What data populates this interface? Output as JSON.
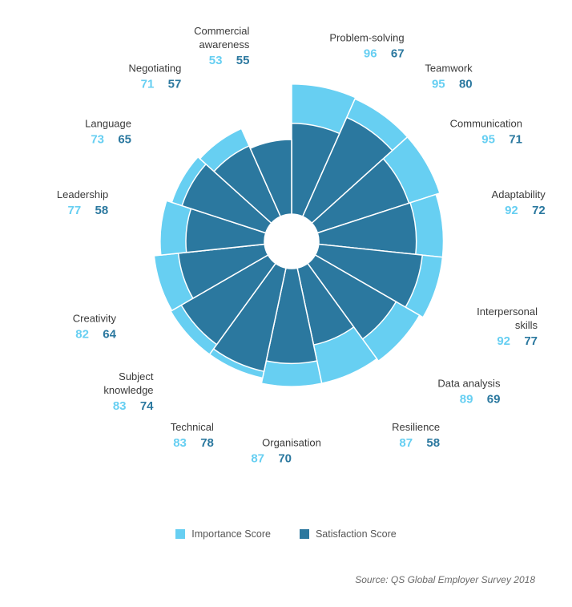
{
  "chart_data": {
    "type": "polar-area",
    "radial_max": 100,
    "categories": [
      "Problem-solving",
      "Teamwork",
      "Communication",
      "Adaptability",
      "Interpersonal skills",
      "Data analysis",
      "Resilience",
      "Organisation",
      "Technical",
      "Subject knowledge",
      "Creativity",
      "Leadership",
      "Language",
      "Negotiating",
      "Commercial awareness"
    ],
    "label_lines": [
      [
        "Problem-solving"
      ],
      [
        "Teamwork"
      ],
      [
        "Communication"
      ],
      [
        "Adaptability"
      ],
      [
        "Interpersonal",
        "skills"
      ],
      [
        "Data analysis"
      ],
      [
        "Resilience"
      ],
      [
        "Organisation"
      ],
      [
        "Technical"
      ],
      [
        "Subject",
        "knowledge"
      ],
      [
        "Creativity"
      ],
      [
        "Leadership"
      ],
      [
        "Language"
      ],
      [
        "Negotiating"
      ],
      [
        "Commercial",
        "awareness"
      ]
    ],
    "series": [
      {
        "name": "Importance Score",
        "color": "#67cff2",
        "values": [
          96,
          95,
          95,
          92,
          92,
          89,
          87,
          87,
          83,
          83,
          82,
          77,
          73,
          71,
          53
        ]
      },
      {
        "name": "Satisfaction Score",
        "color": "#2b789f",
        "values": [
          67,
          80,
          71,
          72,
          77,
          69,
          58,
          70,
          78,
          74,
          64,
          58,
          65,
          57,
          55
        ]
      }
    ]
  },
  "legend": {
    "importance": "Importance Score",
    "satisfaction": "Satisfaction Score"
  },
  "source": "Source: QS Global Employer Survey 2018"
}
